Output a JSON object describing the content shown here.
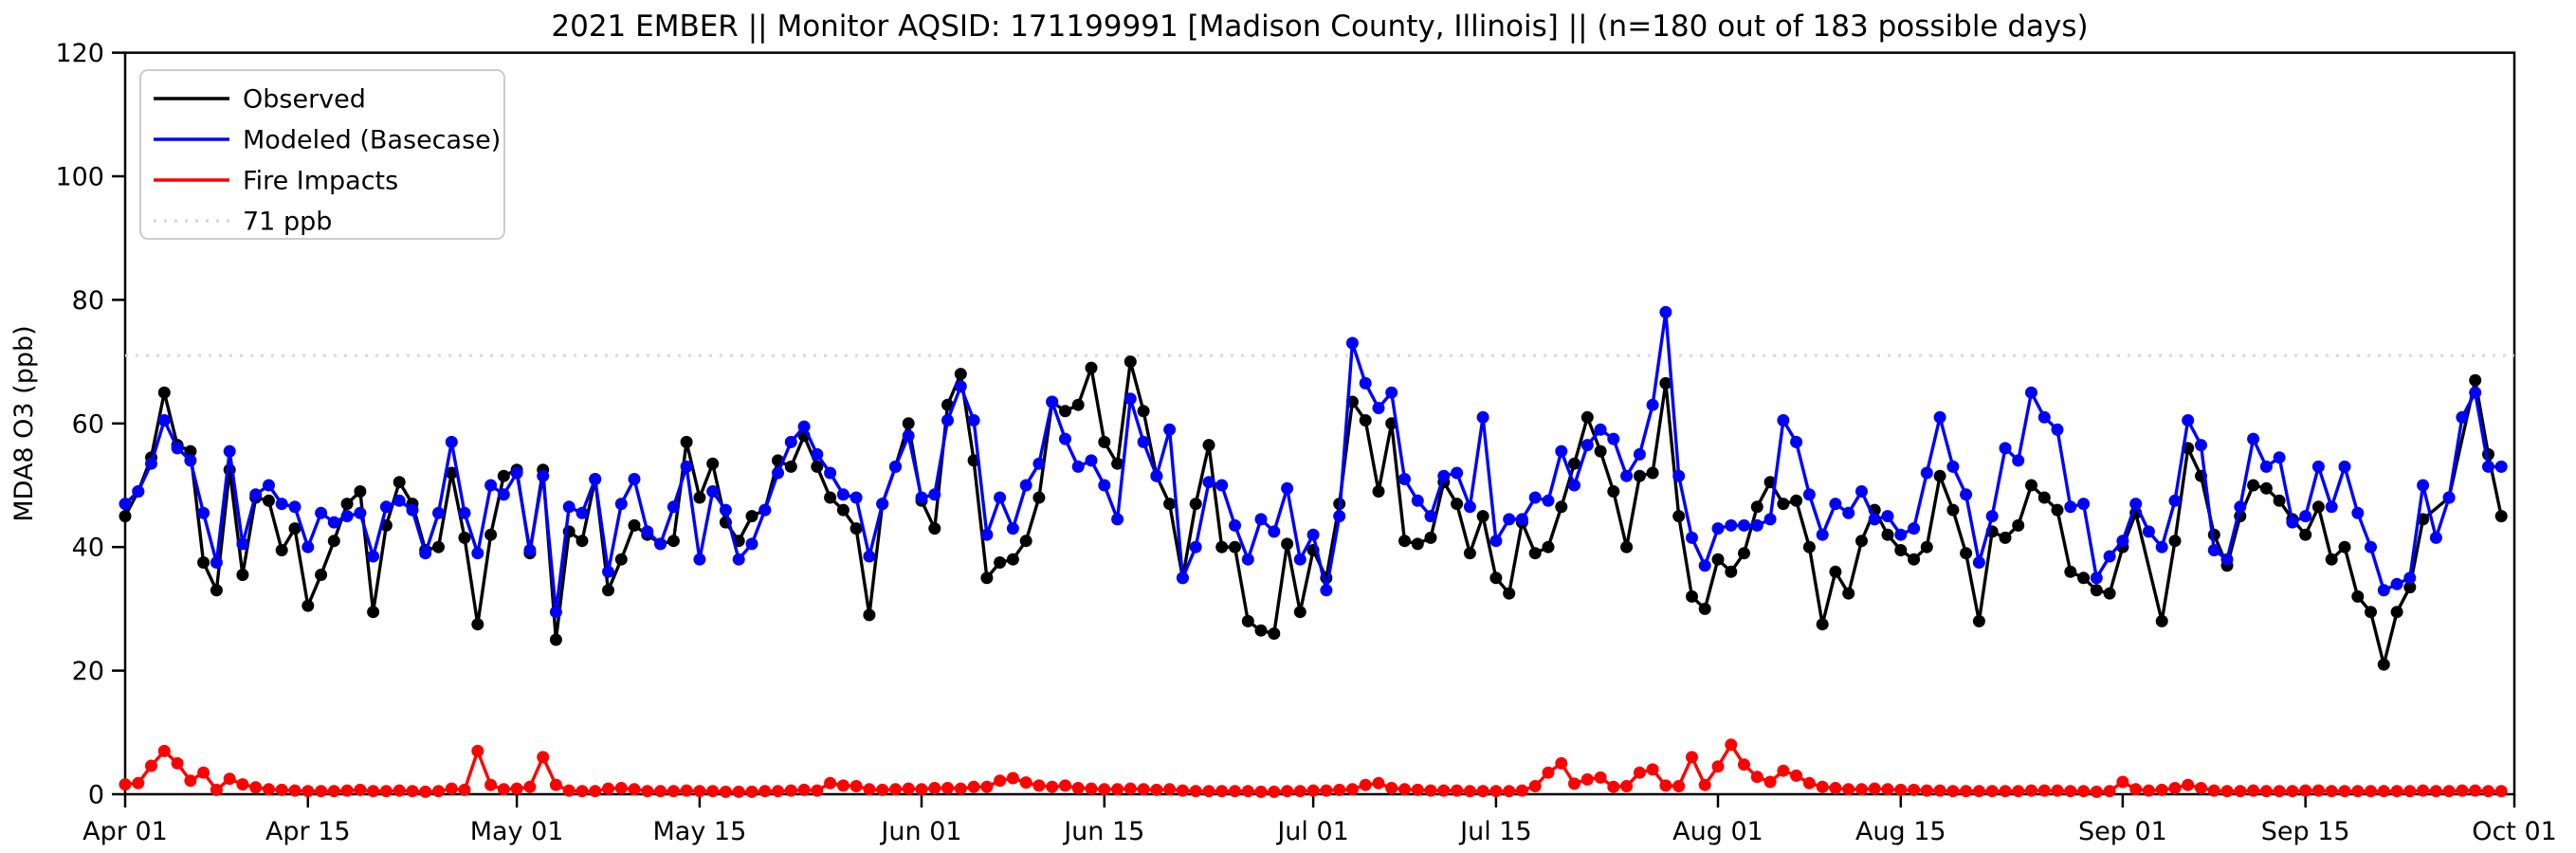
{
  "page": {
    "background": "#ffffff"
  },
  "chart_data": {
    "type": "line",
    "title": "2021 EMBER || Monitor AQSID: 171199991 [Madison County, Illinois] || (n=180 out of 183 possible days)",
    "xlabel": "",
    "ylabel": "MDA8 O3 (ppb)",
    "ylim": [
      0,
      120
    ],
    "yticks": [
      0,
      20,
      40,
      60,
      80,
      100,
      120
    ],
    "xtick_labels": [
      "Apr 01",
      "Apr 15",
      "May 01",
      "May 15",
      "Jun 01",
      "Jun 15",
      "Jul 01",
      "Jul 15",
      "Aug 01",
      "Aug 15",
      "Sep 01",
      "Sep 15",
      "Oct 01"
    ],
    "xtick_day_index": [
      0,
      14,
      30,
      44,
      61,
      75,
      91,
      105,
      122,
      136,
      153,
      167,
      183
    ],
    "n_days": 183,
    "months": [
      {
        "label": "Apr",
        "days": 30
      },
      {
        "label": "May",
        "days": 31
      },
      {
        "label": "Jun",
        "days": 30
      },
      {
        "label": "Jul",
        "days": 31
      },
      {
        "label": "Aug",
        "days": 31
      },
      {
        "label": "Sep",
        "days": 30
      }
    ],
    "grid": false,
    "legend_position": "upper left",
    "annotation": "n=180 out of 183 possible days",
    "reference_line": {
      "label": "71 ppb",
      "value": 71,
      "color": "#d9d9d9",
      "style": "dotted"
    },
    "frame_color": "#000000",
    "series": [
      {
        "name": "Observed",
        "color": "#000000",
        "style": "solid",
        "marker": "circle",
        "values": [
          45,
          49,
          54.5,
          65,
          56.5,
          55.5,
          37.5,
          33,
          52.5,
          35.5,
          48,
          47.5,
          39.5,
          43,
          30.5,
          35.5,
          41,
          47,
          49,
          29.5,
          43.5,
          50.5,
          47,
          39.5,
          40,
          52,
          41.5,
          27.5,
          42,
          51.5,
          52.5,
          39,
          52.5,
          25,
          42.5,
          41,
          51,
          33,
          38,
          43.5,
          42,
          40.5,
          41,
          57,
          48,
          53.5,
          44,
          41,
          45,
          46,
          54,
          53,
          58,
          53,
          48,
          46,
          43,
          29,
          47,
          53,
          60,
          47.5,
          43,
          63,
          68,
          54,
          35,
          37.5,
          38,
          41,
          48,
          63.5,
          62,
          63,
          69,
          57,
          53.5,
          70,
          62,
          51.5,
          47,
          35,
          47,
          56.5,
          40,
          40,
          28,
          26.5,
          26,
          40.5,
          29.5,
          39.5,
          35,
          47,
          63.5,
          60.5,
          49,
          60,
          41,
          40.5,
          41.5,
          50.5,
          47,
          39,
          45,
          35,
          32.5,
          44,
          39,
          40,
          46.5,
          53.5,
          61,
          55.5,
          49,
          40,
          51.5,
          52,
          66.5,
          45,
          32,
          30,
          38,
          36,
          39,
          46.5,
          50.5,
          47,
          47.5,
          40,
          27.5,
          36,
          32.5,
          41,
          46,
          42,
          39.5,
          38,
          40,
          51.5,
          46,
          39,
          28,
          42.5,
          41.5,
          43.5,
          50,
          48,
          46,
          36,
          35,
          33,
          32.5,
          40,
          45.5,
          null,
          28,
          41,
          56,
          51.5,
          42,
          37,
          45,
          50,
          49.5,
          47.5,
          44.5,
          42,
          46.5,
          38,
          40,
          32,
          29.5,
          21,
          29.5,
          33.5,
          44.5,
          null,
          48,
          null,
          67,
          55,
          45
        ]
      },
      {
        "name": "Modeled (Basecase)",
        "color": "#0000ff",
        "style": "solid",
        "marker": "circle",
        "values": [
          47,
          49,
          53.5,
          60.5,
          56,
          54,
          45.5,
          37.5,
          55.5,
          40.5,
          48.5,
          50,
          47,
          46.5,
          40,
          45.5,
          44,
          45,
          45.5,
          38.5,
          46.5,
          47.5,
          46,
          39,
          45.5,
          57,
          45.5,
          39,
          50,
          48.5,
          52,
          39.5,
          51.5,
          29.5,
          46.5,
          45.5,
          51,
          36,
          47,
          51,
          42.5,
          40.5,
          46.5,
          53,
          38,
          49,
          46,
          38,
          40.5,
          46,
          52,
          57,
          59.5,
          55,
          52,
          48.5,
          48,
          38.5,
          47,
          53,
          58,
          48,
          48.5,
          60.5,
          66,
          60.5,
          42,
          48,
          43,
          50,
          53.5,
          63.5,
          57.5,
          53,
          54,
          50,
          44.5,
          64,
          57,
          51.5,
          59,
          35,
          40,
          50.5,
          50,
          43.5,
          38,
          44.5,
          42.5,
          49.5,
          38,
          42,
          33,
          45,
          73,
          66.5,
          62.5,
          65,
          51,
          47.5,
          45,
          51.5,
          52,
          46.5,
          61,
          41,
          44.5,
          44.5,
          48,
          47.5,
          55.5,
          50,
          56.5,
          59,
          57.5,
          51.5,
          55,
          63,
          78,
          51.5,
          41.5,
          37,
          43,
          43.5,
          43.5,
          43.5,
          44.5,
          60.5,
          57,
          48.5,
          42,
          47,
          45.5,
          49,
          44.5,
          45,
          42,
          43,
          52,
          61,
          53,
          48.5,
          37.5,
          45,
          56,
          54,
          65,
          61,
          59,
          46.5,
          47,
          35,
          38.5,
          41,
          47,
          42.5,
          40,
          47.5,
          60.5,
          56.5,
          39.5,
          38,
          46.5,
          57.5,
          53,
          54.5,
          44,
          45,
          53,
          46.5,
          53,
          45.5,
          40,
          33,
          34,
          35,
          50,
          41.5,
          48,
          61,
          65,
          53,
          53
        ]
      },
      {
        "name": "Fire Impacts",
        "color": "#ff0000",
        "style": "solid",
        "marker": "circle",
        "values": [
          1.6,
          1.8,
          4.6,
          7,
          5,
          2.2,
          3.5,
          0.7,
          2.5,
          1.6,
          1.1,
          0.8,
          0.7,
          0.6,
          0.5,
          0.5,
          0.5,
          0.6,
          0.7,
          0.5,
          0.5,
          0.6,
          0.5,
          0.4,
          0.5,
          0.9,
          0.7,
          7,
          1.5,
          0.8,
          0.9,
          1.2,
          6,
          1.5,
          0.6,
          0.5,
          0.5,
          0.9,
          1,
          0.8,
          0.5,
          0.5,
          0.5,
          0.6,
          0.5,
          0.5,
          0.4,
          0.4,
          0.4,
          0.5,
          0.5,
          0.6,
          0.7,
          0.6,
          1.8,
          1.4,
          1.3,
          0.8,
          0.7,
          0.8,
          0.9,
          0.8,
          1,
          1,
          0.9,
          1.2,
          1.2,
          2.2,
          2.6,
          1.9,
          1.4,
          1.2,
          1.4,
          1,
          0.9,
          0.8,
          0.8,
          0.9,
          0.8,
          0.7,
          0.8,
          0.6,
          0.5,
          0.5,
          0.5,
          0.5,
          0.5,
          0.4,
          0.4,
          0.5,
          0.5,
          0.6,
          0.6,
          0.7,
          0.8,
          1.5,
          1.8,
          1,
          0.8,
          0.7,
          0.6,
          0.6,
          0.6,
          0.5,
          0.5,
          0.5,
          0.5,
          0.6,
          1.3,
          3.5,
          5,
          1.7,
          2.4,
          2.7,
          1.2,
          1.3,
          3.5,
          4,
          1.4,
          1.3,
          6,
          1.5,
          4.5,
          8,
          4.8,
          2.8,
          2,
          3.8,
          3,
          1.8,
          1.2,
          1,
          0.8,
          0.8,
          0.9,
          0.8,
          0.7,
          0.7,
          0.6,
          0.6,
          0.5,
          0.5,
          0.5,
          0.5,
          0.5,
          0.5,
          0.6,
          0.6,
          0.6,
          0.5,
          0.5,
          0.4,
          0.5,
          2,
          0.8,
          0.6,
          0.7,
          1,
          1.5,
          1,
          0.6,
          0.5,
          0.5,
          0.6,
          0.5,
          0.5,
          0.5,
          0.6,
          0.6,
          0.5,
          0.5,
          0.5,
          0.5,
          0.5,
          0.5,
          0.5,
          0.6,
          0.5,
          0.5,
          0.6,
          0.6,
          0.5,
          0.5
        ]
      }
    ],
    "legend_entries": [
      "Observed",
      "Modeled (Basecase)",
      "Fire Impacts",
      "71 ppb"
    ]
  }
}
